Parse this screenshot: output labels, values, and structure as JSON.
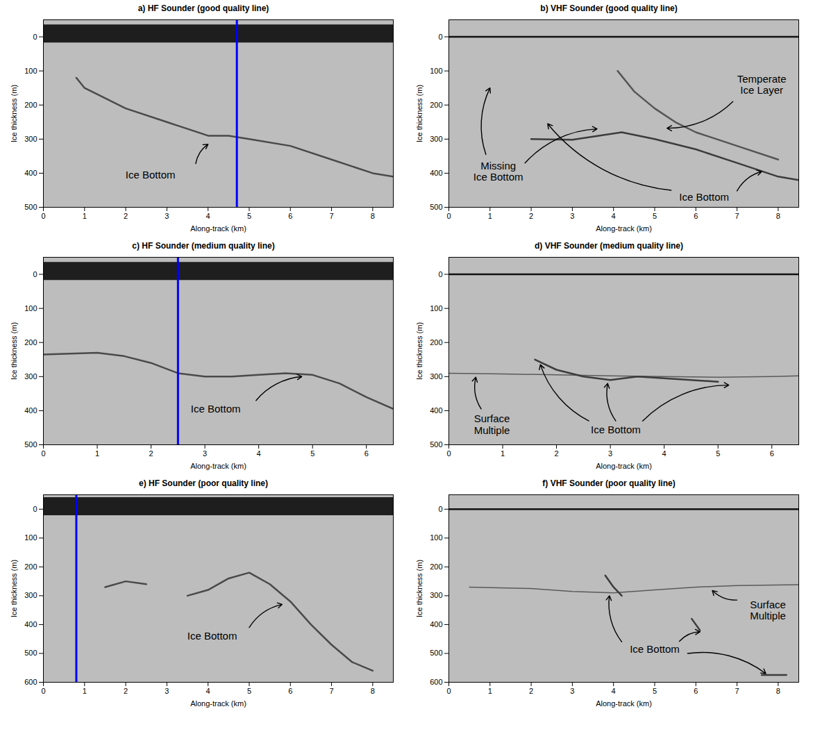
{
  "chart_data": [
    {
      "type": "line",
      "title": "a) HF Sounder (good quality line)",
      "x_label": "Along-track (km)",
      "y_label": "Ice thickness (m)",
      "xlim": [
        0,
        8.5
      ],
      "xticks": [
        0,
        1,
        2,
        3,
        4,
        5,
        6,
        7,
        8
      ],
      "ylim": [
        -50,
        500
      ],
      "yticks": [
        0,
        100,
        200,
        300,
        400,
        500
      ],
      "series": [
        {
          "color": "#1e1e1e",
          "line_style": "thick",
          "x": [
            0,
            8.5
          ],
          "values": [
            -10,
            -10
          ]
        },
        {
          "color": "#4a4a4a",
          "line_style": "solid",
          "x": [
            0.8,
            1,
            2,
            3,
            4,
            4.5,
            5,
            6,
            7,
            8,
            8.5
          ],
          "values": [
            120,
            150,
            210,
            250,
            290,
            290,
            300,
            320,
            360,
            400,
            410
          ]
        }
      ],
      "vertical_line": {
        "x": 4.7,
        "color": "#0000ff"
      },
      "annotations": [
        {
          "text": "Ice Bottom",
          "x": 2.6,
          "y": 405,
          "arrows": [
            {
              "from": [
                3.7,
                372
              ],
              "to": [
                4.0,
                315
              ]
            }
          ]
        }
      ]
    },
    {
      "type": "line",
      "title": "b) VHF Sounder (good quality line)",
      "x_label": "Along-track (km)",
      "y_label": "Ice thickness (m)",
      "xlim": [
        0,
        8.5
      ],
      "xticks": [
        0,
        1,
        2,
        3,
        4,
        5,
        6,
        7,
        8
      ],
      "ylim": [
        -50,
        500
      ],
      "yticks": [
        0,
        100,
        200,
        300,
        400,
        500
      ],
      "series": [
        {
          "color": "#111111",
          "line_style": "solid",
          "x": [
            0,
            8.5
          ],
          "values": [
            0,
            0
          ]
        },
        {
          "color": "#555555",
          "line_style": "solid",
          "x": [
            4.1,
            4.5,
            5,
            5.5,
            6,
            7,
            8
          ],
          "values": [
            100,
            160,
            210,
            250,
            280,
            320,
            360
          ]
        },
        {
          "color": "#3c3c3c",
          "line_style": "solid",
          "x": [
            2,
            3,
            4.2,
            5,
            6,
            7,
            8,
            8.5
          ],
          "values": [
            300,
            302,
            280,
            300,
            330,
            370,
            410,
            420
          ]
        }
      ],
      "annotations": [
        {
          "text": "Temperate Ice Layer",
          "x": 7.6,
          "y": 140,
          "arrows": [
            {
              "from": [
                6.9,
                190
              ],
              "to": [
                5.3,
                268
              ]
            }
          ]
        },
        {
          "text": "Missing Ice Bottom",
          "x": 1.2,
          "y": 395,
          "arrows": [
            {
              "from": [
                0.9,
                345
              ],
              "to": [
                1.0,
                150
              ]
            },
            {
              "from": [
                1.85,
                370
              ],
              "to": [
                3.6,
                270
              ]
            }
          ]
        },
        {
          "text": "Ice Bottom",
          "x": 6.2,
          "y": 470,
          "arrows": [
            {
              "from": [
                5.4,
                450
              ],
              "to": [
                2.4,
                255
              ]
            },
            {
              "from": [
                7.0,
                452
              ],
              "to": [
                7.6,
                395
              ]
            }
          ]
        }
      ]
    },
    {
      "type": "line",
      "title": "c) HF Sounder (medium quality line)",
      "x_label": "Along-track (km)",
      "y_label": "Ice thickness (m)",
      "xlim": [
        0,
        6.5
      ],
      "xticks": [
        0,
        1,
        2,
        3,
        4,
        5,
        6
      ],
      "ylim": [
        -50,
        500
      ],
      "yticks": [
        0,
        100,
        200,
        300,
        400,
        500
      ],
      "series": [
        {
          "color": "#1e1e1e",
          "line_style": "thick",
          "x": [
            0,
            6.5
          ],
          "values": [
            -10,
            -10
          ]
        },
        {
          "color": "#4a4a4a",
          "line_style": "solid",
          "x": [
            0,
            1,
            1.5,
            2,
            2.5,
            3,
            3.5,
            4,
            4.5,
            5,
            5.5,
            6,
            6.5
          ],
          "values": [
            235,
            230,
            240,
            260,
            290,
            300,
            300,
            295,
            290,
            295,
            320,
            360,
            395
          ]
        }
      ],
      "vertical_line": {
        "x": 2.5,
        "color": "#0000ff"
      },
      "annotations": [
        {
          "text": "Ice Bottom",
          "x": 3.2,
          "y": 395,
          "arrows": [
            {
              "from": [
                3.95,
                370
              ],
              "to": [
                4.8,
                300
              ]
            }
          ]
        }
      ]
    },
    {
      "type": "line",
      "title": "d) VHF Sounder (medium quality line)",
      "x_label": "Along-track (km)",
      "y_label": "Ice thickness (m)",
      "xlim": [
        0,
        6.5
      ],
      "xticks": [
        0,
        1,
        2,
        3,
        4,
        5,
        6
      ],
      "ylim": [
        -50,
        500
      ],
      "yticks": [
        0,
        100,
        200,
        300,
        400,
        500
      ],
      "series": [
        {
          "color": "#111111",
          "line_style": "solid",
          "x": [
            0,
            6.5
          ],
          "values": [
            0,
            0
          ]
        },
        {
          "color": "#5a5a5a",
          "line_style": "thin",
          "x": [
            0,
            1,
            2,
            3,
            4,
            5,
            6,
            6.5
          ],
          "values": [
            290,
            292,
            295,
            298,
            300,
            302,
            300,
            298
          ]
        },
        {
          "color": "#3c3c3c",
          "line_style": "solid",
          "x": [
            1.6,
            2,
            2.5,
            3,
            3.5,
            4,
            4.5,
            5
          ],
          "values": [
            250,
            280,
            300,
            310,
            300,
            305,
            310,
            315
          ]
        }
      ],
      "annotations": [
        {
          "text": "Surface Multiple",
          "x": 0.8,
          "y": 440,
          "arrows": [
            {
              "from": [
                0.6,
                395
              ],
              "to": [
                0.5,
                302
              ]
            }
          ]
        },
        {
          "text": "Ice Bottom",
          "x": 3.1,
          "y": 455,
          "arrows": [
            {
              "from": [
                2.6,
                430
              ],
              "to": [
                1.7,
                265
              ]
            },
            {
              "from": [
                3.1,
                430
              ],
              "to": [
                2.95,
                320
              ]
            },
            {
              "from": [
                3.6,
                430
              ],
              "to": [
                5.2,
                325
              ]
            }
          ]
        }
      ]
    },
    {
      "type": "line",
      "title": "e) HF Sounder (poor quality line)",
      "x_label": "Along-track (km)",
      "y_label": "Ice thickness (m)",
      "xlim": [
        0,
        8.5
      ],
      "xticks": [
        0,
        1,
        2,
        3,
        4,
        5,
        6,
        7,
        8
      ],
      "ylim": [
        -50,
        600
      ],
      "yticks": [
        0,
        100,
        200,
        300,
        400,
        500,
        600
      ],
      "series": [
        {
          "color": "#1e1e1e",
          "line_style": "thick",
          "x": [
            0,
            8.5
          ],
          "values": [
            -10,
            -10
          ]
        },
        {
          "color": "#4a4a4a",
          "line_style": "solid",
          "x": [
            1.5,
            2,
            2.5,
            3,
            3.5,
            4,
            4.5,
            5,
            5.5,
            6,
            6.5,
            7,
            7.5,
            8
          ],
          "values": [
            270,
            250,
            260,
            null,
            300,
            280,
            240,
            220,
            260,
            320,
            400,
            470,
            530,
            560
          ]
        }
      ],
      "vertical_line": {
        "x": 0.8,
        "color": "#0000ff"
      },
      "annotations": [
        {
          "text": "Ice Bottom",
          "x": 4.1,
          "y": 440,
          "arrows": [
            {
              "from": [
                5.0,
                410
              ],
              "to": [
                5.8,
                330
              ]
            }
          ]
        }
      ]
    },
    {
      "type": "line",
      "title": "f) VHF Sounder (poor quality line)",
      "x_label": "Along-track (km)",
      "y_label": "Ice thickness (m)",
      "xlim": [
        0,
        8.5
      ],
      "xticks": [
        0,
        1,
        2,
        3,
        4,
        5,
        6,
        7,
        8
      ],
      "ylim": [
        -50,
        600
      ],
      "yticks": [
        0,
        100,
        200,
        300,
        400,
        500,
        600
      ],
      "series": [
        {
          "color": "#111111",
          "line_style": "solid",
          "x": [
            0,
            8.5
          ],
          "values": [
            0,
            0
          ]
        },
        {
          "color": "#5a5a5a",
          "line_style": "thin",
          "x": [
            0.5,
            2,
            3,
            4,
            5,
            6,
            7,
            8.5
          ],
          "values": [
            270,
            275,
            285,
            290,
            280,
            270,
            265,
            262
          ]
        },
        {
          "color": "#3c3c3c",
          "line_style": "solid",
          "x": [
            3.8,
            4,
            4.2,
            4.5,
            5.9,
            6.1,
            6.5,
            7.6,
            8.2
          ],
          "values": [
            230,
            270,
            300,
            null,
            380,
            420,
            null,
            575,
            575
          ]
        }
      ],
      "annotations": [
        {
          "text": "Surface Multiple",
          "x": 7.75,
          "y": 350,
          "arrows": [
            {
              "from": [
                7.0,
                315
              ],
              "to": [
                6.4,
                282
              ]
            }
          ]
        },
        {
          "text": "Ice Bottom",
          "x": 5.0,
          "y": 485,
          "arrows": [
            {
              "from": [
                4.2,
                460
              ],
              "to": [
                3.9,
                300
              ]
            },
            {
              "from": [
                5.6,
                458
              ],
              "to": [
                6.1,
                425
              ]
            },
            {
              "from": [
                5.8,
                500
              ],
              "to": [
                7.7,
                570
              ]
            }
          ]
        }
      ]
    }
  ]
}
